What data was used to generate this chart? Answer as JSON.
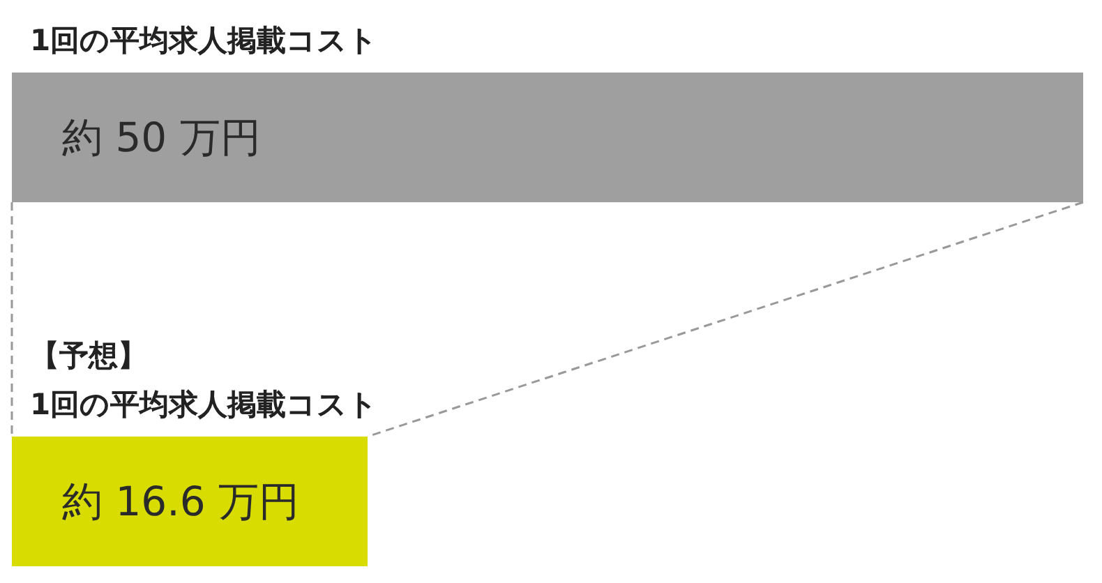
{
  "chart_data": {
    "type": "bar",
    "orientation": "horizontal",
    "categories": [
      "1回の平均求人掲載コスト",
      "【予想】\n1回の平均求人掲載コスト"
    ],
    "values": [
      50,
      16.6
    ],
    "colors": [
      "#9f9f9f",
      "#d8dc00"
    ],
    "value_labels": [
      "約 50 万円",
      "約 16.6 万円"
    ]
  }
}
